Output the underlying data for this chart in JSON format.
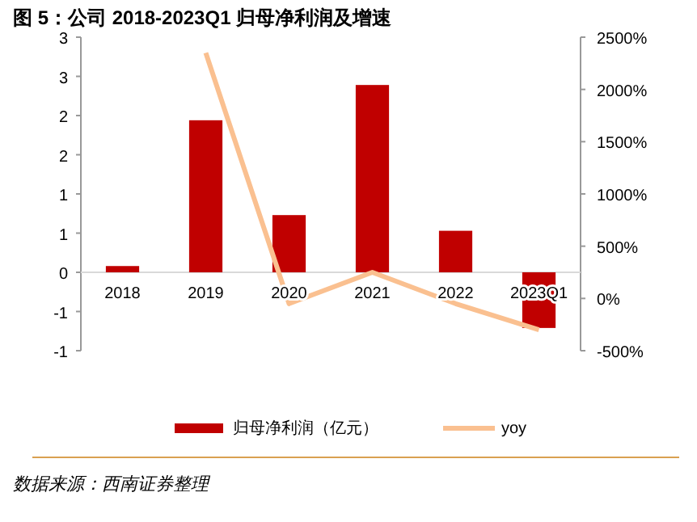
{
  "chart_data": {
    "type": "bar",
    "title": "图 5：公司 2018-2023Q1 归母净利润及增速",
    "categories": [
      "2018",
      "2019",
      "2020",
      "2021",
      "2022",
      "2023Q1"
    ],
    "series": [
      {
        "name": "归母净利润（亿元）",
        "color": "#c00000",
        "values": [
          0.08,
          1.94,
          0.73,
          2.39,
          0.53,
          -0.71
        ]
      },
      {
        "name": "yoy",
        "type": "line",
        "axis": "y2",
        "color": "#fac090",
        "values": [
          null,
          2350,
          -50,
          250,
          -50,
          -300
        ]
      }
    ],
    "ylim": [
      -1,
      3
    ],
    "yticks": [
      {
        "value": -1,
        "label": "-1"
      },
      {
        "value": -0.5,
        "label": "-1"
      },
      0,
      {
        "value": 0.5,
        "label": "1"
      },
      1,
      {
        "value": 1.5,
        "label": "2"
      },
      2,
      {
        "value": 2.5,
        "label": "3"
      },
      3
    ],
    "y2lim": [
      -500,
      2500
    ],
    "y2ticks": [
      {
        "value": -500,
        "label": "-500%"
      },
      {
        "value": 0,
        "label": "0%"
      },
      {
        "value": 500,
        "label": "500%"
      },
      {
        "value": 1000,
        "label": "1000%"
      },
      {
        "value": 1500,
        "label": "1500%"
      },
      {
        "value": 2000,
        "label": "2000%"
      },
      {
        "value": 2500,
        "label": "2500%"
      }
    ],
    "legend": "bottom",
    "grid": false,
    "annotations": [
      "数据来源：西南证券整理"
    ]
  }
}
